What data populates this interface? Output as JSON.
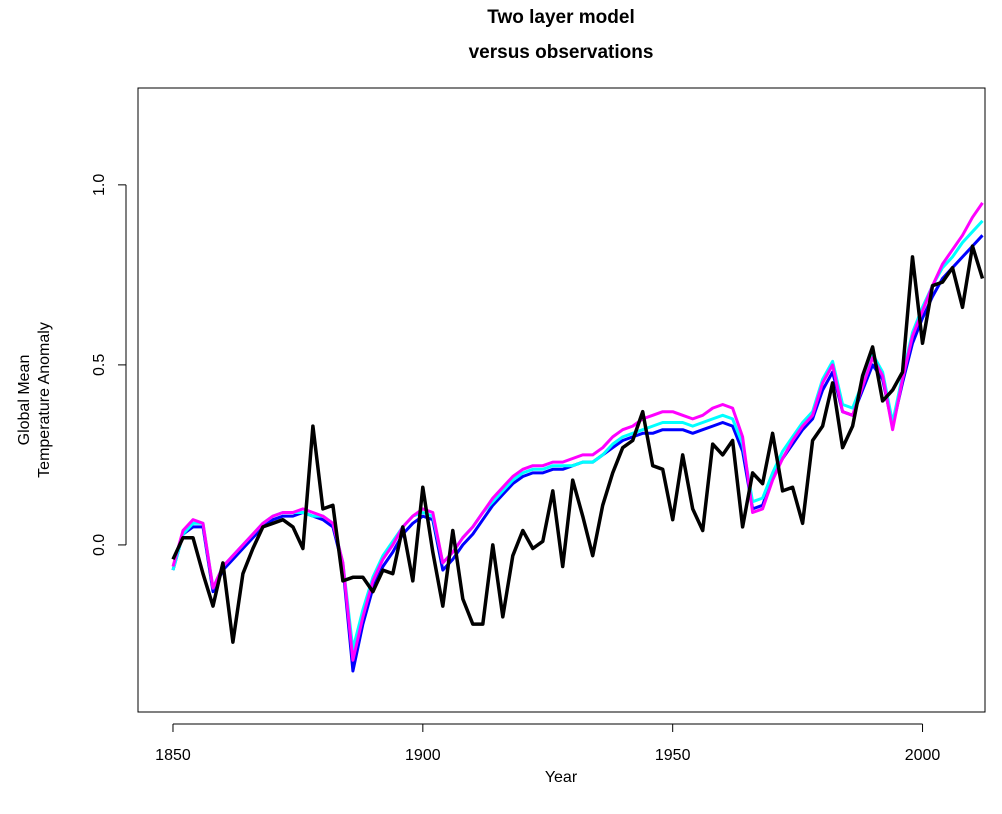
{
  "chart_data": {
    "type": "line",
    "title": [
      "Two layer model",
      "versus observations"
    ],
    "xlabel": "Year",
    "ylabel": [
      "Global Mean",
      "Temperature Anomaly"
    ],
    "xlim": [
      1843,
      2012.5
    ],
    "ylim": [
      -0.464,
      1.269
    ],
    "xticks": [
      1850,
      1900,
      1950,
      2000
    ],
    "yticks": [
      {
        "value": 0,
        "label": "0.0"
      },
      {
        "value": 0.5,
        "label": "0.5"
      },
      {
        "value": 1,
        "label": "1.0"
      }
    ],
    "x": [
      1850,
      1852,
      1854,
      1856,
      1858,
      1860,
      1862,
      1864,
      1866,
      1868,
      1870,
      1872,
      1874,
      1876,
      1878,
      1880,
      1882,
      1884,
      1886,
      1888,
      1890,
      1892,
      1894,
      1896,
      1898,
      1900,
      1902,
      1904,
      1906,
      1908,
      1910,
      1912,
      1914,
      1916,
      1918,
      1920,
      1922,
      1924,
      1926,
      1928,
      1930,
      1932,
      1934,
      1936,
      1938,
      1940,
      1942,
      1944,
      1946,
      1948,
      1950,
      1952,
      1954,
      1956,
      1958,
      1960,
      1962,
      1964,
      1966,
      1968,
      1970,
      1972,
      1974,
      1976,
      1978,
      1980,
      1982,
      1984,
      1986,
      1988,
      1990,
      1992,
      1994,
      1996,
      1998,
      2000,
      2002,
      2004,
      2006,
      2008,
      2010,
      2012
    ],
    "series": [
      {
        "color": "#0000ff",
        "width": 3,
        "values": [
          -0.07,
          0.03,
          0.05,
          0.05,
          -0.13,
          -0.07,
          -0.04,
          -0.01,
          0.02,
          0.05,
          0.07,
          0.08,
          0.08,
          0.09,
          0.08,
          0.07,
          0.05,
          -0.06,
          -0.35,
          -0.22,
          -0.12,
          -0.06,
          -0.02,
          0.03,
          0.06,
          0.08,
          0.07,
          -0.07,
          -0.04,
          0.0,
          0.03,
          0.07,
          0.11,
          0.14,
          0.17,
          0.19,
          0.2,
          0.2,
          0.21,
          0.21,
          0.22,
          0.23,
          0.23,
          0.25,
          0.27,
          0.29,
          0.3,
          0.31,
          0.31,
          0.32,
          0.32,
          0.32,
          0.31,
          0.32,
          0.33,
          0.34,
          0.33,
          0.26,
          0.1,
          0.11,
          0.19,
          0.24,
          0.28,
          0.32,
          0.35,
          0.43,
          0.48,
          0.37,
          0.36,
          0.43,
          0.5,
          0.46,
          0.33,
          0.45,
          0.56,
          0.63,
          0.69,
          0.74,
          0.77,
          0.8,
          0.83,
          0.86
        ]
      },
      {
        "color": "#00ffff",
        "width": 3,
        "values": [
          -0.07,
          0.03,
          0.06,
          0.06,
          -0.12,
          -0.06,
          -0.03,
          0.0,
          0.03,
          0.06,
          0.08,
          0.09,
          0.09,
          0.09,
          0.08,
          0.08,
          0.06,
          -0.05,
          -0.29,
          -0.18,
          -0.09,
          -0.03,
          0.01,
          0.05,
          0.08,
          0.09,
          0.08,
          -0.05,
          -0.02,
          0.02,
          0.05,
          0.09,
          0.12,
          0.15,
          0.18,
          0.2,
          0.21,
          0.21,
          0.22,
          0.22,
          0.22,
          0.23,
          0.23,
          0.25,
          0.28,
          0.3,
          0.31,
          0.32,
          0.33,
          0.34,
          0.34,
          0.34,
          0.33,
          0.34,
          0.35,
          0.36,
          0.35,
          0.28,
          0.12,
          0.13,
          0.2,
          0.26,
          0.3,
          0.34,
          0.37,
          0.46,
          0.51,
          0.39,
          0.38,
          0.45,
          0.53,
          0.48,
          0.34,
          0.47,
          0.59,
          0.66,
          0.72,
          0.77,
          0.8,
          0.84,
          0.87,
          0.9
        ]
      },
      {
        "color": "#ff00ff",
        "width": 3,
        "values": [
          -0.06,
          0.04,
          0.07,
          0.06,
          -0.12,
          -0.06,
          -0.03,
          0.0,
          0.03,
          0.06,
          0.08,
          0.09,
          0.09,
          0.1,
          0.09,
          0.08,
          0.06,
          -0.05,
          -0.32,
          -0.2,
          -0.1,
          -0.04,
          0.0,
          0.05,
          0.08,
          0.1,
          0.09,
          -0.05,
          -0.02,
          0.02,
          0.05,
          0.09,
          0.13,
          0.16,
          0.19,
          0.21,
          0.22,
          0.22,
          0.23,
          0.23,
          0.24,
          0.25,
          0.25,
          0.27,
          0.3,
          0.32,
          0.33,
          0.35,
          0.36,
          0.37,
          0.37,
          0.36,
          0.35,
          0.36,
          0.38,
          0.39,
          0.38,
          0.3,
          0.09,
          0.1,
          0.18,
          0.24,
          0.29,
          0.33,
          0.36,
          0.45,
          0.5,
          0.37,
          0.36,
          0.44,
          0.52,
          0.47,
          0.32,
          0.46,
          0.58,
          0.65,
          0.72,
          0.78,
          0.82,
          0.86,
          0.91,
          0.95
        ]
      },
      {
        "color": "#000000",
        "width": 3.5,
        "values": [
          -0.04,
          0.02,
          0.02,
          -0.08,
          -0.17,
          -0.05,
          -0.27,
          -0.08,
          -0.01,
          0.05,
          0.06,
          0.07,
          0.05,
          -0.01,
          0.33,
          0.1,
          0.11,
          -0.1,
          -0.09,
          -0.09,
          -0.13,
          -0.07,
          -0.08,
          0.05,
          -0.1,
          0.16,
          -0.02,
          -0.17,
          0.04,
          -0.15,
          -0.22,
          -0.22,
          0.0,
          -0.2,
          -0.03,
          0.04,
          -0.01,
          0.01,
          0.15,
          -0.06,
          0.18,
          0.08,
          -0.03,
          0.11,
          0.2,
          0.27,
          0.29,
          0.37,
          0.22,
          0.21,
          0.07,
          0.25,
          0.1,
          0.04,
          0.28,
          0.25,
          0.29,
          0.05,
          0.2,
          0.17,
          0.31,
          0.15,
          0.16,
          0.06,
          0.29,
          0.33,
          0.45,
          0.27,
          0.33,
          0.47,
          0.55,
          0.4,
          0.43,
          0.48,
          0.8,
          0.56,
          0.72,
          0.73,
          0.77,
          0.66,
          0.83,
          0.74
        ]
      }
    ]
  }
}
